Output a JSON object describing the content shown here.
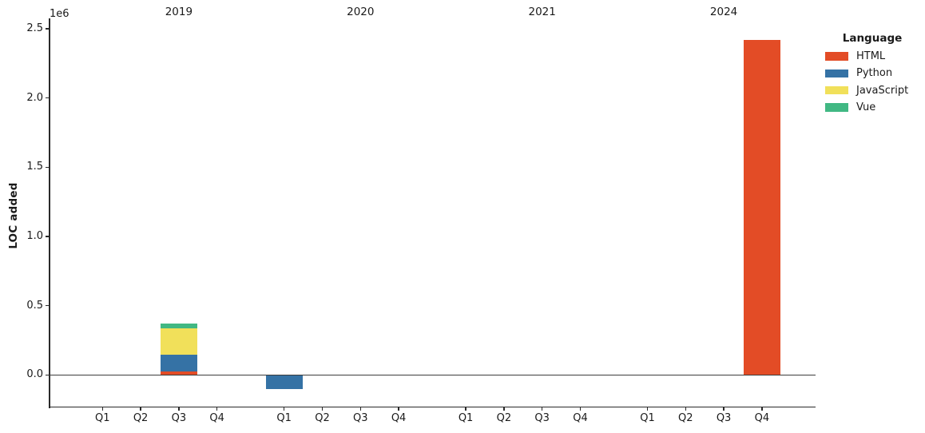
{
  "figure": {
    "ylabel": "LOC added",
    "offset_text": "1e6"
  },
  "legend": {
    "title": "Language",
    "entries": [
      {
        "label": "HTML",
        "color": "#e34c26"
      },
      {
        "label": "Python",
        "color": "#3572a5"
      },
      {
        "label": "JavaScript",
        "color": "#f1e05a"
      },
      {
        "label": "Vue",
        "color": "#41b883"
      }
    ]
  },
  "chart_data": {
    "type": "bar",
    "stacked": true,
    "title": "",
    "xlabel": "",
    "ylabel": "LOC added",
    "y_unit_multiplier_label": "1e6",
    "ylim": [
      -230000,
      2570000
    ],
    "yticks_in_1e6": [
      0.0,
      0.5,
      1.0,
      1.5,
      2.0,
      2.5
    ],
    "grid": false,
    "legend_title": "Language",
    "legend_position": "upper right outside",
    "year_groups": [
      "2019",
      "2020",
      "2021",
      "2024"
    ],
    "quarters": [
      "Q1",
      "Q2",
      "Q3",
      "Q4"
    ],
    "series": [
      {
        "name": "HTML",
        "color": "#e34c26"
      },
      {
        "name": "Python",
        "color": "#3572a5"
      },
      {
        "name": "JavaScript",
        "color": "#f1e05a"
      },
      {
        "name": "Vue",
        "color": "#41b883"
      }
    ],
    "bars": [
      {
        "year": "2019",
        "quarter": "Q3",
        "segments": [
          {
            "language": "HTML",
            "value": 25000
          },
          {
            "language": "Python",
            "value": 120000
          },
          {
            "language": "JavaScript",
            "value": 190000
          },
          {
            "language": "Vue",
            "value": 35000
          }
        ]
      },
      {
        "year": "2020",
        "quarter": "Q1",
        "segments": [
          {
            "language": "Python",
            "value": -100000
          }
        ]
      },
      {
        "year": "2024",
        "quarter": "Q4",
        "segments": [
          {
            "language": "HTML",
            "value": 2420000
          }
        ]
      }
    ]
  }
}
